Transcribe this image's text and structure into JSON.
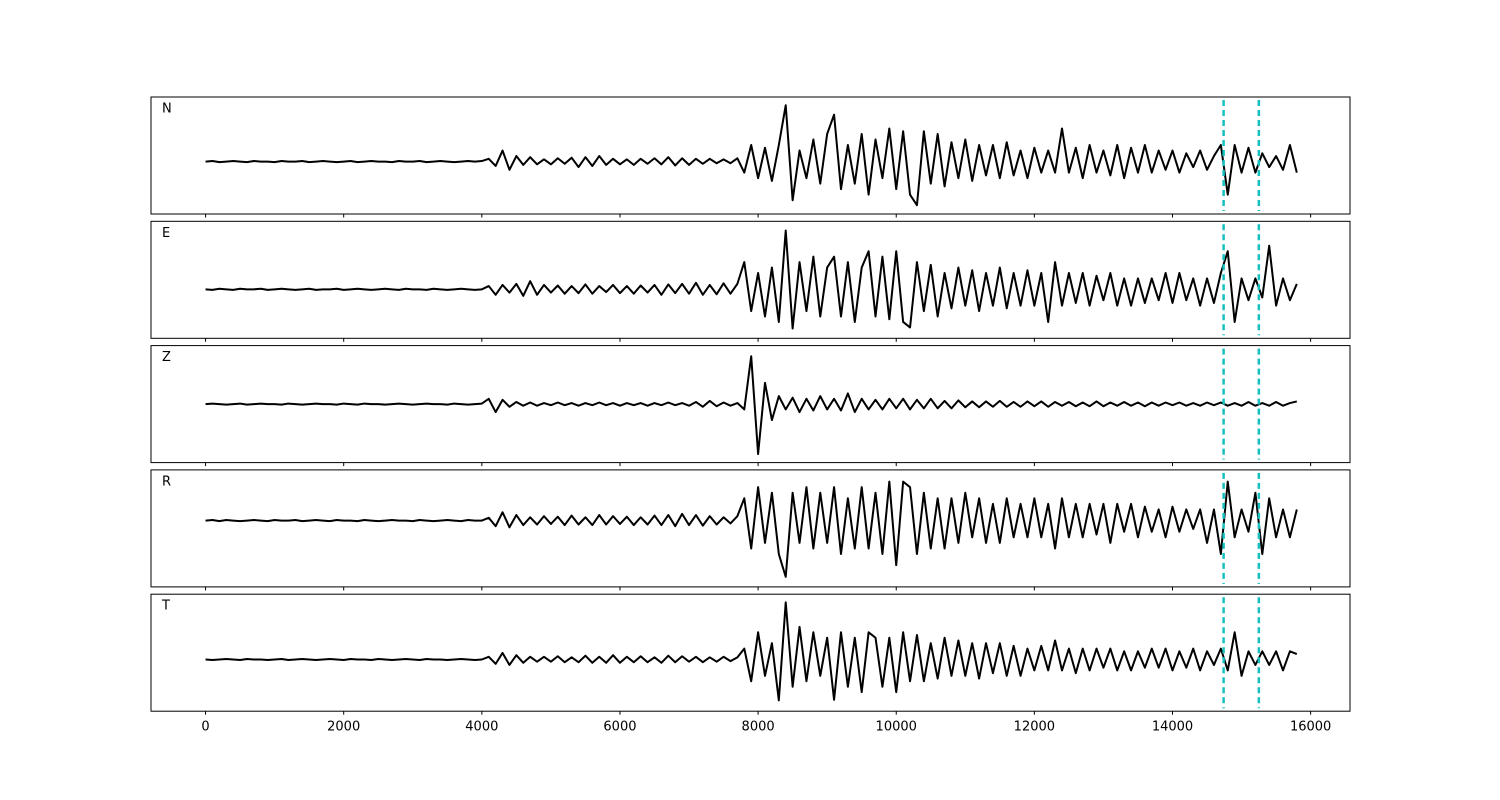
{
  "chart_data": {
    "type": "line",
    "x": [
      0,
      100,
      200,
      300,
      400,
      500,
      600,
      700,
      800,
      900,
      1000,
      1100,
      1200,
      1300,
      1400,
      1500,
      1600,
      1700,
      1800,
      1900,
      2000,
      2100,
      2200,
      2300,
      2400,
      2500,
      2600,
      2700,
      2800,
      2900,
      3000,
      3100,
      3200,
      3300,
      3400,
      3500,
      3600,
      3700,
      3800,
      3900,
      4000,
      4100,
      4200,
      4300,
      4400,
      4500,
      4600,
      4700,
      4800,
      4900,
      5000,
      5100,
      5200,
      5300,
      5400,
      5500,
      5600,
      5700,
      5800,
      5900,
      6000,
      6100,
      6200,
      6300,
      6400,
      6500,
      6600,
      6700,
      6800,
      6900,
      7000,
      7100,
      7200,
      7300,
      7400,
      7500,
      7600,
      7700,
      7800,
      7900,
      8000,
      8100,
      8200,
      8300,
      8400,
      8500,
      8600,
      8700,
      8800,
      8900,
      9000,
      9100,
      9200,
      9300,
      9400,
      9500,
      9600,
      9700,
      9800,
      9900,
      10000,
      10100,
      10200,
      10300,
      10400,
      10500,
      10600,
      10700,
      10800,
      10900,
      11000,
      11100,
      11200,
      11300,
      11400,
      11500,
      11600,
      11700,
      11800,
      11900,
      12000,
      12100,
      12200,
      12300,
      12400,
      12500,
      12600,
      12700,
      12800,
      12900,
      13000,
      13100,
      13200,
      13300,
      13400,
      13500,
      13600,
      13700,
      13800,
      13900,
      14000,
      14100,
      14200,
      14300,
      14400,
      14500,
      14600,
      14700,
      14800,
      14900,
      15000,
      15100,
      15200,
      15300,
      15400,
      15500,
      15600,
      15700,
      15800
    ],
    "xlim": [
      -790,
      16570
    ],
    "xticks": [
      0,
      2000,
      4000,
      6000,
      8000,
      10000,
      12000,
      14000,
      16000
    ],
    "vlines": [
      14740,
      15250
    ],
    "vline_color": "#17bfbf",
    "series": [
      {
        "name": "N",
        "color": "#000000",
        "ylim": [
          -0.95,
          1.17
        ],
        "values": [
          0,
          0.01,
          -0.01,
          0,
          0.01,
          0,
          -0.01,
          0.01,
          0,
          0,
          -0.01,
          0.01,
          0,
          0,
          0.01,
          -0.01,
          0,
          0.01,
          0,
          -0.01,
          0,
          0.01,
          -0.01,
          0,
          0.01,
          0,
          0,
          -0.01,
          0.01,
          0,
          0,
          0.01,
          -0.01,
          0,
          0.01,
          0,
          -0.01,
          0,
          0.01,
          0,
          0.01,
          0.05,
          -0.08,
          0.2,
          -0.15,
          0.1,
          -0.06,
          0.08,
          -0.05,
          0.04,
          -0.05,
          0.06,
          -0.04,
          0.07,
          -0.1,
          0.08,
          -0.08,
          0.1,
          -0.06,
          0.05,
          -0.05,
          0.04,
          -0.06,
          0.05,
          -0.04,
          0.06,
          -0.05,
          0.08,
          -0.07,
          0.06,
          -0.06,
          0.05,
          -0.04,
          0.05,
          -0.03,
          0.04,
          -0.03,
          0.06,
          -0.2,
          0.3,
          -0.3,
          0.25,
          -0.35,
          0.3,
          1.02,
          -0.7,
          0.2,
          -0.3,
          0.4,
          -0.4,
          0.5,
          0.85,
          -0.5,
          0.3,
          -0.4,
          0.5,
          -0.6,
          0.4,
          -0.3,
          0.6,
          -0.5,
          0.55,
          -0.6,
          -0.79,
          0.55,
          -0.4,
          0.5,
          -0.45,
          0.35,
          -0.3,
          0.4,
          -0.35,
          0.3,
          -0.25,
          0.3,
          -0.3,
          0.35,
          -0.25,
          0.2,
          -0.3,
          0.25,
          -0.2,
          0.2,
          -0.2,
          0.6,
          -0.2,
          0.25,
          -0.3,
          0.3,
          -0.2,
          0.2,
          -0.25,
          0.3,
          -0.3,
          0.25,
          -0.2,
          0.3,
          -0.2,
          0.2,
          -0.15,
          0.2,
          -0.2,
          0.15,
          -0.1,
          0.2,
          -0.15,
          0.1,
          0.3,
          -0.6,
          0.3,
          -0.2,
          0.25,
          -0.2,
          0.15,
          -0.1,
          0.1,
          -0.15,
          0.3,
          -0.2
        ]
      },
      {
        "name": "E",
        "color": "#000000",
        "ylim": [
          -0.9,
          1.25
        ],
        "values": [
          0,
          -0.01,
          0.01,
          0,
          -0.01,
          0.01,
          0,
          0,
          0.01,
          -0.01,
          0,
          0.01,
          0,
          -0.01,
          0,
          0.01,
          -0.01,
          0,
          0,
          0.01,
          -0.01,
          0,
          0.01,
          0,
          -0.01,
          0,
          0.01,
          0,
          -0.01,
          0.01,
          0,
          0,
          -0.01,
          0.01,
          0,
          -0.01,
          0,
          0.01,
          0,
          -0.01,
          0,
          0.06,
          -0.1,
          0.08,
          -0.06,
          0.1,
          -0.12,
          0.15,
          -0.1,
          0.08,
          -0.06,
          0.07,
          -0.08,
          0.06,
          -0.07,
          0.09,
          -0.08,
          0.06,
          -0.05,
          0.08,
          -0.07,
          0.06,
          -0.08,
          0.07,
          -0.06,
          0.08,
          -0.1,
          0.09,
          -0.07,
          0.1,
          -0.08,
          0.12,
          -0.1,
          0.08,
          -0.09,
          0.11,
          -0.08,
          0.1,
          0.5,
          -0.4,
          0.3,
          -0.5,
          0.4,
          -0.6,
          1.08,
          -0.72,
          0.5,
          -0.4,
          0.6,
          -0.5,
          0.4,
          0.6,
          -0.5,
          0.5,
          -0.6,
          0.4,
          0.7,
          -0.5,
          0.6,
          -0.55,
          0.7,
          -0.6,
          -0.7,
          0.5,
          -0.4,
          0.45,
          -0.5,
          0.3,
          -0.35,
          0.4,
          -0.3,
          0.35,
          -0.4,
          0.3,
          -0.3,
          0.4,
          -0.35,
          0.3,
          -0.3,
          0.35,
          -0.3,
          0.3,
          -0.6,
          0.5,
          -0.3,
          0.3,
          -0.25,
          0.3,
          -0.3,
          0.25,
          -0.2,
          0.3,
          -0.3,
          0.2,
          -0.3,
          0.2,
          -0.25,
          0.2,
          -0.2,
          0.3,
          -0.25,
          0.3,
          -0.2,
          0.2,
          -0.3,
          0.2,
          -0.25,
          0.3,
          0.7,
          -0.6,
          0.2,
          -0.2,
          0.2,
          -0.15,
          0.8,
          -0.3,
          0.2,
          -0.2,
          0.1
        ]
      },
      {
        "name": "Z",
        "color": "#000000",
        "ylim": [
          -1.1,
          1.1
        ],
        "values": [
          0,
          0.01,
          0,
          -0.01,
          0,
          0.01,
          -0.01,
          0,
          0.01,
          0,
          0,
          -0.01,
          0.01,
          0,
          -0.01,
          0,
          0.01,
          0,
          0,
          -0.01,
          0.01,
          0,
          -0.01,
          0.01,
          0,
          0,
          -0.01,
          0,
          0.01,
          0,
          -0.01,
          0,
          0.01,
          0,
          0,
          -0.01,
          0.01,
          0,
          -0.01,
          0,
          0.01,
          0.1,
          -0.15,
          0.08,
          -0.05,
          0.04,
          -0.03,
          0.03,
          -0.03,
          0.02,
          -0.02,
          0.03,
          -0.02,
          0.02,
          -0.03,
          0.02,
          -0.02,
          0.03,
          -0.02,
          0.02,
          -0.03,
          0.02,
          -0.02,
          0.02,
          -0.03,
          0.02,
          -0.02,
          0.03,
          -0.02,
          0.02,
          -0.03,
          0.04,
          -0.05,
          0.06,
          -0.04,
          0.03,
          -0.03,
          0.02,
          -0.1,
          0.9,
          -0.94,
          0.4,
          -0.3,
          0.15,
          -0.1,
          0.12,
          -0.15,
          0.1,
          -0.12,
          0.15,
          -0.1,
          0.1,
          -0.12,
          0.2,
          -0.15,
          0.1,
          -0.1,
          0.08,
          -0.1,
          0.1,
          -0.08,
          0.1,
          -0.1,
          0.08,
          -0.08,
          0.1,
          -0.08,
          0.06,
          -0.08,
          0.07,
          -0.06,
          0.05,
          -0.06,
          0.05,
          -0.05,
          0.06,
          -0.05,
          0.04,
          -0.05,
          0.05,
          -0.04,
          0.05,
          -0.05,
          0.04,
          -0.03,
          0.04,
          -0.04,
          0.03,
          -0.04,
          0.05,
          -0.04,
          0.03,
          -0.03,
          0.04,
          -0.03,
          0.03,
          -0.04,
          0.03,
          -0.03,
          0.03,
          -0.02,
          0.03,
          -0.03,
          0.02,
          -0.03,
          0.03,
          -0.02,
          0.03,
          -0.03,
          0.02,
          -0.03,
          0.04,
          -0.03,
          0.02,
          -0.03,
          0.04,
          -0.03,
          0.02,
          0.05
        ]
      },
      {
        "name": "R",
        "color": "#000000",
        "ylim": [
          -1.19,
          0.91
        ],
        "values": [
          0,
          0.01,
          -0.01,
          0.01,
          0,
          -0.01,
          0,
          0.01,
          0,
          -0.01,
          0.01,
          0,
          0,
          0.01,
          -0.01,
          0,
          0.01,
          0,
          -0.01,
          0.01,
          0,
          0,
          -0.01,
          0.01,
          0,
          -0.01,
          0,
          0.01,
          0,
          0,
          -0.01,
          0.01,
          0,
          -0.01,
          0,
          0.01,
          0,
          -0.01,
          0.01,
          0,
          0,
          0.05,
          -0.1,
          0.15,
          -0.12,
          0.1,
          -0.08,
          0.06,
          -0.07,
          0.08,
          -0.06,
          0.07,
          -0.08,
          0.09,
          -0.07,
          0.06,
          -0.08,
          0.1,
          -0.07,
          0.08,
          -0.06,
          0.07,
          -0.08,
          0.06,
          -0.07,
          0.09,
          -0.08,
          0.1,
          -0.1,
          0.12,
          -0.08,
          0.1,
          -0.09,
          0.08,
          -0.07,
          0.06,
          -0.05,
          0.08,
          0.4,
          -0.5,
          0.6,
          -0.4,
          0.5,
          -0.6,
          -1.01,
          0.5,
          -0.4,
          0.6,
          -0.5,
          0.5,
          -0.4,
          0.6,
          -0.6,
          0.4,
          -0.5,
          0.6,
          -0.5,
          0.5,
          -0.6,
          0.7,
          -0.8,
          0.7,
          0.6,
          -0.6,
          0.5,
          -0.5,
          0.4,
          -0.5,
          0.4,
          -0.4,
          0.5,
          -0.3,
          0.4,
          -0.4,
          0.3,
          -0.4,
          0.4,
          -0.3,
          0.3,
          -0.3,
          0.4,
          -0.3,
          0.3,
          -0.5,
          0.4,
          -0.3,
          0.3,
          -0.3,
          0.3,
          -0.25,
          0.3,
          -0.4,
          0.3,
          -0.2,
          0.3,
          -0.3,
          0.25,
          -0.2,
          0.2,
          -0.3,
          0.25,
          -0.2,
          0.2,
          -0.15,
          0.2,
          -0.4,
          0.2,
          -0.6,
          0.7,
          -0.3,
          0.2,
          -0.2,
          0.5,
          -0.6,
          0.4,
          -0.3,
          0.2,
          -0.3,
          0.2
        ]
      },
      {
        "name": "T",
        "color": "#000000",
        "ylim": [
          -0.95,
          1.2
        ],
        "values": [
          0,
          -0.01,
          0,
          0.01,
          0,
          -0.01,
          0.01,
          0,
          0,
          -0.01,
          0,
          0.01,
          -0.01,
          0,
          0.01,
          0,
          -0.01,
          0,
          0.01,
          0,
          -0.01,
          0.01,
          0,
          0,
          -0.01,
          0.01,
          0,
          -0.01,
          0,
          0.01,
          0,
          -0.01,
          0.01,
          0,
          0,
          -0.01,
          0,
          0.01,
          0,
          -0.01,
          0,
          0.05,
          -0.08,
          0.12,
          -0.1,
          0.08,
          -0.06,
          0.05,
          -0.04,
          0.05,
          -0.04,
          0.06,
          -0.05,
          0.04,
          -0.05,
          0.07,
          -0.06,
          0.05,
          -0.06,
          0.08,
          -0.06,
          0.05,
          -0.05,
          0.06,
          -0.05,
          0.04,
          -0.06,
          0.07,
          -0.05,
          0.06,
          -0.04,
          0.05,
          -0.05,
          0.04,
          -0.04,
          0.05,
          -0.03,
          0.04,
          0.2,
          -0.4,
          0.5,
          -0.3,
          0.3,
          -0.75,
          1.05,
          -0.5,
          0.6,
          -0.4,
          0.5,
          -0.3,
          0.4,
          -0.74,
          0.5,
          -0.5,
          0.4,
          -0.6,
          0.5,
          0.4,
          -0.5,
          0.4,
          -0.6,
          0.5,
          -0.4,
          0.45,
          -0.4,
          0.3,
          -0.35,
          0.4,
          -0.3,
          0.35,
          -0.3,
          0.3,
          -0.35,
          0.3,
          -0.25,
          0.3,
          -0.3,
          0.25,
          -0.3,
          0.2,
          -0.2,
          0.25,
          -0.2,
          0.35,
          -0.2,
          0.2,
          -0.25,
          0.2,
          -0.2,
          0.2,
          -0.15,
          0.2,
          -0.2,
          0.15,
          -0.2,
          0.15,
          -0.15,
          0.2,
          -0.15,
          0.2,
          -0.2,
          0.15,
          -0.15,
          0.2,
          -0.2,
          0.15,
          -0.1,
          0.2,
          -0.2,
          0.5,
          -0.3,
          0.15,
          -0.1,
          0.15,
          -0.1,
          0.15,
          -0.2,
          0.15,
          0.1
        ]
      }
    ]
  }
}
